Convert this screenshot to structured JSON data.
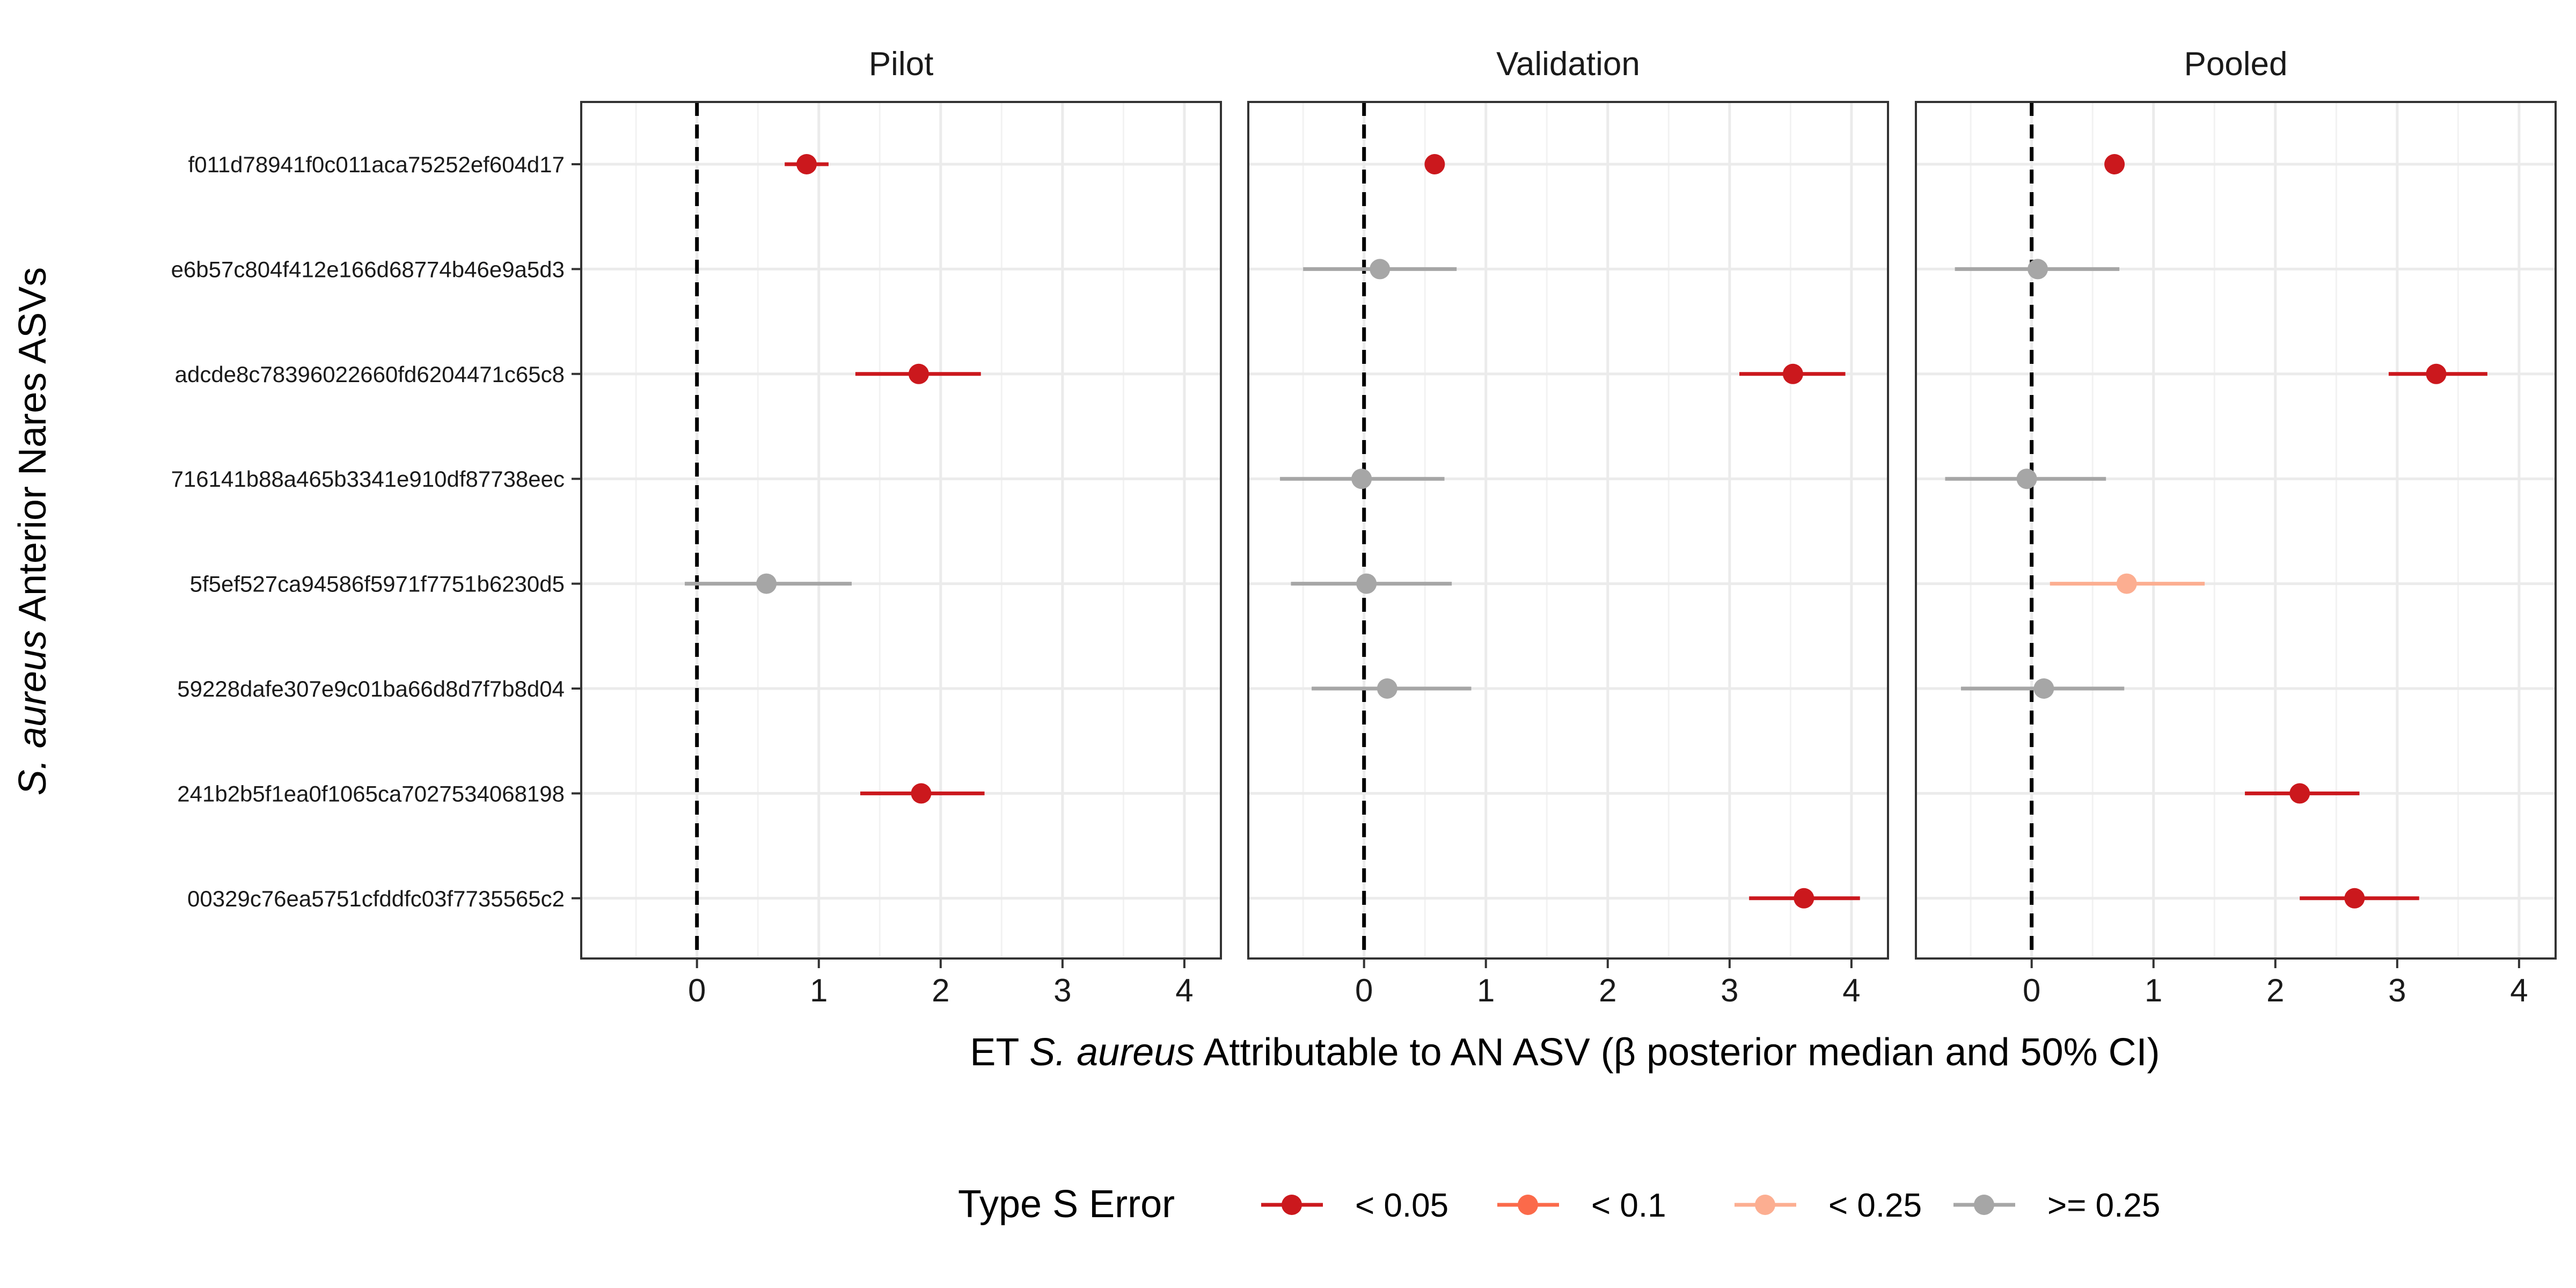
{
  "chart_data": {
    "type": "scatter",
    "panels": [
      "Pilot",
      "Validation",
      "Pooled"
    ],
    "categories": [
      "f011d78941f0c011aca75252ef604d17",
      "e6b57c804f412e166d68774b46e9a5d3",
      "adcde8c78396022660fd6204471c65c8",
      "716141b88a465b3341e910df87738eec",
      "5f5ef527ca94586f5971f7751b6230d5",
      "59228dafe307e9c01ba66d8d7f7b8d04",
      "241b2b5f1ea0f1065ca7027534068198",
      "00329c76ea5751cfddfc03f7735565c2"
    ],
    "xlabel_prefix": "ET ",
    "xlabel_italic": "S. aureus",
    "xlabel_suffix": " Attributable to AN ASV (β posterior median and 50% CI)",
    "ylabel_italic": "S. aureus",
    "ylabel_suffix": " Anterior Nares ASVs",
    "xlim": [
      -0.95,
      4.3
    ],
    "xticks": [
      0,
      1,
      2,
      3,
      4
    ],
    "reference_line_x": 0,
    "grid": true,
    "legend": {
      "title": "Type S Error",
      "placement": "bottom",
      "entries": [
        {
          "label": "< 0.05",
          "color": "#CB181D"
        },
        {
          "label": "< 0.1",
          "color": "#FB6A4A"
        },
        {
          "label": "< 0.25",
          "color": "#FCAE91"
        },
        {
          "label": ">= 0.25",
          "color": "#A6A6A6"
        }
      ]
    },
    "points": [
      {
        "panel": 0,
        "cat": 0,
        "median": 0.9,
        "lo": 0.72,
        "hi": 1.08,
        "err": "< 0.05"
      },
      {
        "panel": 0,
        "cat": 2,
        "median": 1.82,
        "lo": 1.3,
        "hi": 2.33,
        "err": "< 0.05"
      },
      {
        "panel": 0,
        "cat": 4,
        "median": 0.57,
        "lo": -0.1,
        "hi": 1.27,
        "err": ">= 0.25"
      },
      {
        "panel": 0,
        "cat": 6,
        "median": 1.84,
        "lo": 1.34,
        "hi": 2.36,
        "err": "< 0.05"
      },
      {
        "panel": 1,
        "cat": 0,
        "median": 0.58,
        "lo": 0.58,
        "hi": 0.58,
        "err": "< 0.05"
      },
      {
        "panel": 1,
        "cat": 1,
        "median": 0.13,
        "lo": -0.5,
        "hi": 0.76,
        "err": ">= 0.25"
      },
      {
        "panel": 1,
        "cat": 2,
        "median": 3.52,
        "lo": 3.08,
        "hi": 3.95,
        "err": "< 0.05"
      },
      {
        "panel": 1,
        "cat": 3,
        "median": -0.02,
        "lo": -0.69,
        "hi": 0.66,
        "err": ">= 0.25"
      },
      {
        "panel": 1,
        "cat": 4,
        "median": 0.02,
        "lo": -0.6,
        "hi": 0.72,
        "err": ">= 0.25"
      },
      {
        "panel": 1,
        "cat": 5,
        "median": 0.19,
        "lo": -0.43,
        "hi": 0.88,
        "err": ">= 0.25"
      },
      {
        "panel": 1,
        "cat": 7,
        "median": 3.61,
        "lo": 3.16,
        "hi": 4.07,
        "err": "< 0.05"
      },
      {
        "panel": 2,
        "cat": 0,
        "median": 0.68,
        "lo": 0.68,
        "hi": 0.68,
        "err": "< 0.05"
      },
      {
        "panel": 2,
        "cat": 1,
        "median": 0.05,
        "lo": -0.63,
        "hi": 0.72,
        "err": ">= 0.25"
      },
      {
        "panel": 2,
        "cat": 2,
        "median": 3.32,
        "lo": 2.93,
        "hi": 3.74,
        "err": "< 0.05"
      },
      {
        "panel": 2,
        "cat": 3,
        "median": -0.04,
        "lo": -0.71,
        "hi": 0.61,
        "err": ">= 0.25"
      },
      {
        "panel": 2,
        "cat": 4,
        "median": 0.78,
        "lo": 0.15,
        "hi": 1.42,
        "err": "< 0.25"
      },
      {
        "panel": 2,
        "cat": 5,
        "median": 0.1,
        "lo": -0.58,
        "hi": 0.76,
        "err": ">= 0.25"
      },
      {
        "panel": 2,
        "cat": 6,
        "median": 2.2,
        "lo": 1.75,
        "hi": 2.69,
        "err": "< 0.05"
      },
      {
        "panel": 2,
        "cat": 7,
        "median": 2.65,
        "lo": 2.2,
        "hi": 3.18,
        "err": "< 0.05"
      }
    ]
  }
}
